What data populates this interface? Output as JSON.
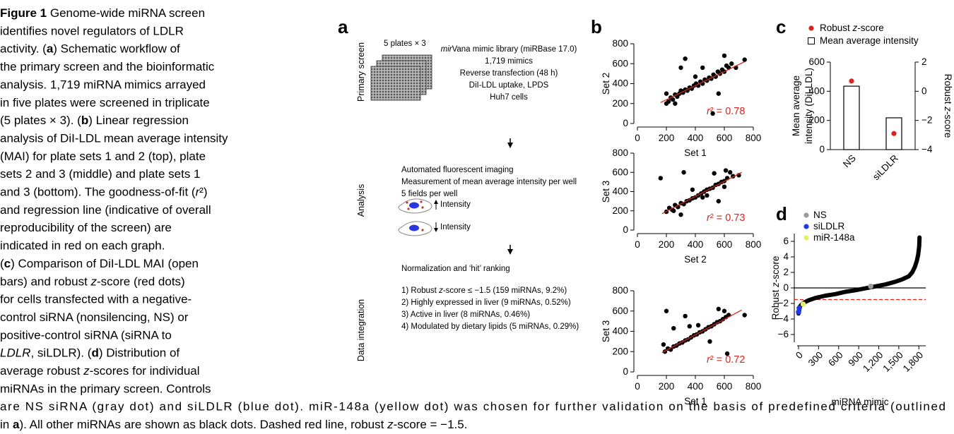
{
  "caption": {
    "lines": [
      "Figure 1  Genome-wide miRNA screen",
      "identifies novel regulators of LDLR",
      "activity. (a) Schematic workflow of",
      "the primary screen and the bioinformatic",
      "analysis. 1,719 miRNA mimics arrayed",
      "in five plates were screened in triplicate",
      "(5 plates × 3). (b) Linear regression",
      "analysis of DiI-LDL mean average intensity",
      "(MAI) for plate sets 1 and 2 (top), plate",
      "sets 2 and 3 (middle) and plate sets 1",
      "and 3 (bottom). The goodness-of-fit (r²)",
      "and regression line (indicative of overall",
      "reproducibility of the screen) are",
      "indicated in red on each graph.",
      "(c) Comparison of DiI-LDL MAI (open",
      "bars) and robust z-score (red dots)",
      "for cells transfected with a negative-",
      "control siRNA (nonsilencing, NS) or",
      "positive-control siRNA (siRNA to",
      "LDLR, siLDLR). (d) Distribution of",
      "average robust z-scores for individual",
      "miRNAs in the primary screen. Controls",
      "are NS siRNA (gray dot) and siLDLR (blue dot). miR-148a (yellow dot) was chosen for further validation on the basis of predefined criteria (outlined",
      "in a). All other miRNAs are shown as black dots. Dashed red line, robust z-score = −1.5."
    ]
  },
  "schematic": {
    "panel": "a",
    "steps": [
      "Primary screen",
      "Analysis",
      "Data integration"
    ],
    "library": [
      "5 plates × 3",
      "mirVana mimic library (miRBase 17.0)",
      "1,719 mimics",
      "Reverse transfection (48 h)",
      "DiI-LDL uptake, LPDS",
      "Huh7 cells"
    ],
    "analysis": [
      "Automated fluorescent imaging",
      "Measurement of mean average intensity per well",
      "5 fields per well"
    ],
    "intensity": [
      "Intensity",
      "Intensity"
    ],
    "ranking_title": "Normalization and ‘hit’ ranking",
    "criteria": [
      "1) Robust z-score ≤ −1.5 (159 miRNAs, 9.2%)",
      "2) Highly expressed in liver (9 miRNAs, 0.52%)",
      "3) Active in liver (8 miRNAs, 0.46%)",
      "4) Modulated by dietary lipids (5 miRNAs, 0.29%)"
    ]
  },
  "chart_data": [
    {
      "type": "scatter",
      "panel": "b",
      "xlabel": "Set 1",
      "ylabel": "Set 2",
      "annotation": "r² = 0.78",
      "annotation_color": "#d7261e",
      "xlim": [
        0,
        800
      ],
      "xticks": [
        0,
        200,
        400,
        600,
        800
      ],
      "ylim": [
        0,
        800
      ],
      "yticks": [
        0,
        200,
        400,
        600,
        800
      ],
      "series": [
        {
          "color": "#000000",
          "x": [
            200,
            215,
            230,
            245,
            260,
            275,
            290,
            300,
            315,
            330,
            345,
            360,
            375,
            390,
            405,
            420,
            435,
            450,
            465,
            480,
            495,
            510,
            525,
            540,
            555,
            570,
            585,
            600,
            615,
            630,
            650,
            680,
            740,
            330,
            520,
            300,
            450,
            200,
            560,
            260,
            600,
            400
          ],
          "values": [
            300,
            220,
            260,
            240,
            290,
            270,
            300,
            330,
            310,
            340,
            330,
            360,
            350,
            380,
            400,
            380,
            420,
            400,
            440,
            430,
            460,
            450,
            490,
            470,
            520,
            500,
            540,
            520,
            580,
            560,
            600,
            560,
            640,
            650,
            100,
            560,
            560,
            200,
            300,
            200,
            680,
            470
          ]
        },
        {
          "type": "line",
          "color": "#d7261e",
          "x": [
            160,
            740
          ],
          "values": [
            210,
            620
          ]
        }
      ]
    },
    {
      "type": "scatter",
      "xlabel": "Set 2",
      "ylabel": "Set 3",
      "annotation": "r² = 0.73",
      "annotation_color": "#d7261e",
      "xlim": [
        0,
        800
      ],
      "xticks": [
        0,
        200,
        400,
        600,
        800
      ],
      "ylim": [
        0,
        800
      ],
      "yticks": [
        0,
        200,
        400,
        600,
        800
      ],
      "series": [
        {
          "color": "#000000",
          "x": [
            200,
            220,
            240,
            260,
            280,
            300,
            320,
            340,
            360,
            380,
            400,
            420,
            440,
            460,
            480,
            500,
            520,
            540,
            560,
            580,
            600,
            620,
            640,
            160,
            320,
            700,
            250,
            610,
            450,
            380,
            300,
            560,
            480,
            530,
            600,
            660
          ],
          "values": [
            190,
            230,
            210,
            260,
            240,
            280,
            270,
            300,
            310,
            330,
            340,
            360,
            380,
            400,
            420,
            430,
            440,
            470,
            480,
            500,
            510,
            540,
            600,
            540,
            600,
            570,
            200,
            620,
            340,
            420,
            160,
            300,
            360,
            590,
            450,
            560
          ]
        },
        {
          "type": "line",
          "color": "#d7261e",
          "x": [
            170,
            720
          ],
          "values": [
            170,
            600
          ]
        }
      ]
    },
    {
      "type": "scatter",
      "xlabel": "Set 1",
      "ylabel": "Set 3",
      "annotation": "r² = 0.72",
      "annotation_color": "#d7261e",
      "xlim": [
        0,
        800
      ],
      "xticks": [
        0,
        200,
        400,
        600,
        800
      ],
      "ylim": [
        0,
        800
      ],
      "yticks": [
        0,
        200,
        400,
        600,
        800
      ],
      "series": [
        {
          "color": "#000000",
          "x": [
            190,
            210,
            230,
            250,
            270,
            290,
            310,
            330,
            350,
            370,
            390,
            410,
            430,
            450,
            470,
            490,
            510,
            530,
            550,
            570,
            590,
            610,
            630,
            200,
            330,
            180,
            560,
            740,
            620,
            420,
            500,
            250,
            600,
            360
          ],
          "values": [
            200,
            230,
            220,
            250,
            260,
            280,
            290,
            310,
            320,
            340,
            360,
            370,
            390,
            400,
            420,
            440,
            450,
            470,
            490,
            500,
            520,
            540,
            560,
            600,
            550,
            270,
            620,
            560,
            180,
            460,
            300,
            430,
            600,
            450
          ]
        },
        {
          "type": "line",
          "color": "#d7261e",
          "x": [
            170,
            720
          ],
          "values": [
            190,
            610
          ]
        }
      ]
    },
    {
      "type": "bar",
      "panel": "c",
      "categories": [
        "NS",
        "siLDLR"
      ],
      "ylabel": [
        "Mean average",
        "intensity (DiI-LDL)"
      ],
      "y2label": "Robust z-score",
      "ylim": [
        0,
        600
      ],
      "yticks": [
        0,
        200,
        400,
        600
      ],
      "y2lim": [
        -4,
        2
      ],
      "y2ticks": [
        {
          "value": -4,
          "label": "−4"
        },
        {
          "value": -2,
          "label": "−2"
        },
        0,
        2
      ],
      "series": [
        {
          "name": "Robust z-score",
          "type": "scatter",
          "axis": "y2",
          "color": "#d7261e",
          "values": [
            0.7,
            -2.9
          ]
        },
        {
          "name": "Mean average intensity",
          "type": "bar",
          "color": "#ffffff",
          "values": [
            435,
            218
          ]
        }
      ]
    },
    {
      "type": "line",
      "panel": "d",
      "xlabel": "miRNA mimic",
      "ylabel": "Robust z-score",
      "xlim": [
        0,
        1850
      ],
      "xticks": [
        0,
        300,
        600,
        900,
        {
          "value": 1200,
          "label": "1,200"
        },
        {
          "value": 1500,
          "label": "1,500"
        },
        {
          "value": 1800,
          "label": "1,800"
        }
      ],
      "ylim": [
        -7,
        7
      ],
      "yticks": [
        {
          "value": -6,
          "label": "−6"
        },
        {
          "value": -4,
          "label": "−4"
        },
        {
          "value": -2,
          "label": "−2"
        },
        0,
        2,
        4,
        6
      ],
      "reference_lines": [
        {
          "value": 0,
          "color": "#000000",
          "dashed": false
        },
        {
          "value": -1.5,
          "color": "#d7261e",
          "dashed": true
        }
      ],
      "series": [
        {
          "type": "line",
          "color": "#000000",
          "x": [
            0,
            20,
            40,
            80,
            150,
            250,
            400,
            550,
            700,
            850,
            1000,
            1150,
            1300,
            1450,
            1550,
            1650,
            1700,
            1740,
            1770,
            1790,
            1800,
            1805,
            1810
          ],
          "values": [
            -3.3,
            -2.4,
            -2.2,
            -1.9,
            -1.6,
            -1.3,
            -1.0,
            -0.8,
            -0.5,
            -0.3,
            -0.05,
            0.2,
            0.45,
            0.8,
            1.1,
            1.5,
            2.0,
            2.7,
            3.5,
            4.3,
            5.0,
            5.4,
            6.5
          ]
        },
        {
          "name": "NS",
          "type": "scatter",
          "color": "#9a9a9a",
          "x": [
            1080
          ],
          "values": [
            0.2
          ]
        },
        {
          "name": "siLDLR",
          "type": "scatter",
          "color": "#2038e8",
          "x": [
            0,
            10
          ],
          "values": [
            -3.1,
            -2.6
          ]
        },
        {
          "name": "miR-148a",
          "type": "scatter",
          "color": "#e3ef6e",
          "x": [
            70
          ],
          "values": [
            -2.1
          ]
        }
      ]
    }
  ]
}
